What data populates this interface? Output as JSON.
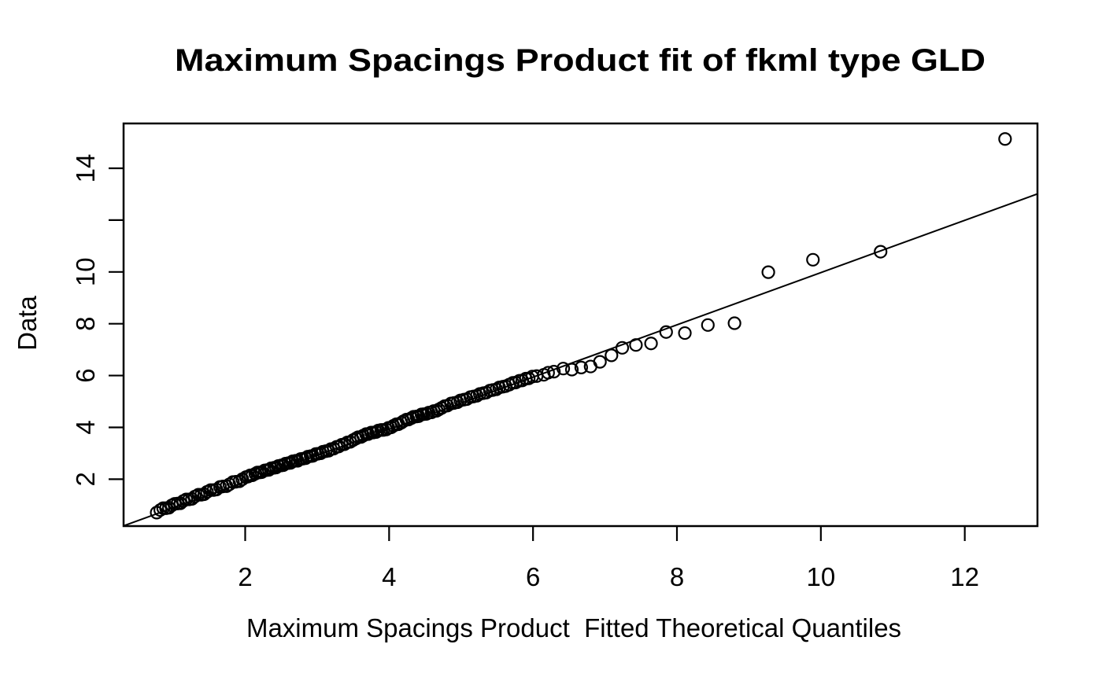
{
  "figure": {
    "background": "#ffffff",
    "foreground": "#000000"
  },
  "chart_data": {
    "type": "scatter",
    "title": "Maximum Spacings Product fit of fkml type GLD",
    "xlabel": "Maximum Spacings Product  Fitted Theoretical Quantiles",
    "ylabel": "Data",
    "xlim": [
      0.31,
      13.01
    ],
    "ylim": [
      0.19,
      15.73
    ],
    "x_ticks": [
      2,
      4,
      6,
      8,
      10,
      12
    ],
    "x_tick_labels": [
      "2",
      "4",
      "6",
      "8",
      "10",
      "12"
    ],
    "y_ticks": [
      2,
      4,
      6,
      8,
      10,
      12,
      14
    ],
    "y_tick_labels": [
      "2",
      "4",
      "6",
      "8",
      "10",
      "",
      "14"
    ],
    "grid": false,
    "legend": null,
    "marker": "open-circle",
    "marker_color": "#000000",
    "reference_line": {
      "x1": 0.31,
      "y1": 0.2,
      "x2": 13.01,
      "y2": 13.01
    },
    "points": [
      [
        0.77,
        0.71
      ],
      [
        0.82,
        0.81
      ],
      [
        0.86,
        0.88
      ],
      [
        0.9,
        0.88
      ],
      [
        0.94,
        0.9
      ],
      [
        0.98,
        0.99
      ],
      [
        1.02,
        1.05
      ],
      [
        1.06,
        1.06
      ],
      [
        1.1,
        1.07
      ],
      [
        1.14,
        1.16
      ],
      [
        1.18,
        1.22
      ],
      [
        1.22,
        1.22
      ],
      [
        1.26,
        1.24
      ],
      [
        1.3,
        1.33
      ],
      [
        1.35,
        1.4
      ],
      [
        1.39,
        1.4
      ],
      [
        1.43,
        1.42
      ],
      [
        1.47,
        1.51
      ],
      [
        1.52,
        1.58
      ],
      [
        1.56,
        1.58
      ],
      [
        1.6,
        1.6
      ],
      [
        1.65,
        1.7
      ],
      [
        1.69,
        1.72
      ],
      [
        1.74,
        1.73
      ],
      [
        1.78,
        1.8
      ],
      [
        1.83,
        1.89
      ],
      [
        1.87,
        1.9
      ],
      [
        1.92,
        1.92
      ],
      [
        1.96,
        2.0
      ],
      [
        2.01,
        2.08
      ],
      [
        2.04,
        2.1
      ],
      [
        2.07,
        2.15
      ],
      [
        2.1,
        2.15
      ],
      [
        2.14,
        2.21
      ],
      [
        2.17,
        2.26
      ],
      [
        2.2,
        2.26
      ],
      [
        2.23,
        2.27
      ],
      [
        2.27,
        2.34
      ],
      [
        2.3,
        2.35
      ],
      [
        2.33,
        2.36
      ],
      [
        2.36,
        2.42
      ],
      [
        2.4,
        2.44
      ],
      [
        2.43,
        2.45
      ],
      [
        2.46,
        2.51
      ],
      [
        2.5,
        2.53
      ],
      [
        2.53,
        2.54
      ],
      [
        2.56,
        2.6
      ],
      [
        2.6,
        2.62
      ],
      [
        2.63,
        2.63
      ],
      [
        2.66,
        2.69
      ],
      [
        2.7,
        2.71
      ],
      [
        2.73,
        2.71
      ],
      [
        2.77,
        2.78
      ],
      [
        2.8,
        2.79
      ],
      [
        2.84,
        2.81
      ],
      [
        2.87,
        2.87
      ],
      [
        2.91,
        2.89
      ],
      [
        2.94,
        2.9
      ],
      [
        2.98,
        2.97
      ],
      [
        3.01,
        2.98
      ],
      [
        3.05,
        3.0
      ],
      [
        3.08,
        3.06
      ],
      [
        3.12,
        3.08
      ],
      [
        3.16,
        3.1
      ],
      [
        3.19,
        3.16
      ],
      [
        3.23,
        3.18
      ],
      [
        3.27,
        3.25
      ],
      [
        3.3,
        3.26
      ],
      [
        3.34,
        3.33
      ],
      [
        3.38,
        3.35
      ],
      [
        3.42,
        3.42
      ],
      [
        3.46,
        3.44
      ],
      [
        3.5,
        3.51
      ],
      [
        3.54,
        3.57
      ],
      [
        3.57,
        3.62
      ],
      [
        3.61,
        3.63
      ],
      [
        3.64,
        3.68
      ],
      [
        3.68,
        3.74
      ],
      [
        3.71,
        3.74
      ],
      [
        3.75,
        3.8
      ],
      [
        3.78,
        3.8
      ],
      [
        3.82,
        3.82
      ],
      [
        3.85,
        3.88
      ],
      [
        3.89,
        3.9
      ],
      [
        3.92,
        3.9
      ],
      [
        3.96,
        3.92
      ],
      [
        3.99,
        3.98
      ],
      [
        4.03,
        4.0
      ],
      [
        4.06,
        4.06
      ],
      [
        4.1,
        4.12
      ],
      [
        4.13,
        4.12
      ],
      [
        4.17,
        4.18
      ],
      [
        4.2,
        4.24
      ],
      [
        4.24,
        4.3
      ],
      [
        4.27,
        4.3
      ],
      [
        4.31,
        4.36
      ],
      [
        4.34,
        4.41
      ],
      [
        4.38,
        4.42
      ],
      [
        4.41,
        4.43
      ],
      [
        4.45,
        4.5
      ],
      [
        4.48,
        4.51
      ],
      [
        4.52,
        4.52
      ],
      [
        4.55,
        4.57
      ],
      [
        4.59,
        4.58
      ],
      [
        4.62,
        4.63
      ],
      [
        4.66,
        4.64
      ],
      [
        4.69,
        4.69
      ],
      [
        4.73,
        4.75
      ],
      [
        4.77,
        4.82
      ],
      [
        4.81,
        4.84
      ],
      [
        4.86,
        4.92
      ],
      [
        4.9,
        4.94
      ],
      [
        4.95,
        4.97
      ],
      [
        4.99,
        5.04
      ],
      [
        5.04,
        5.07
      ],
      [
        5.08,
        5.09
      ],
      [
        5.13,
        5.17
      ],
      [
        5.17,
        5.19
      ],
      [
        5.22,
        5.22
      ],
      [
        5.26,
        5.29
      ],
      [
        5.31,
        5.32
      ],
      [
        5.35,
        5.34
      ],
      [
        5.4,
        5.42
      ],
      [
        5.44,
        5.44
      ],
      [
        5.49,
        5.47
      ],
      [
        5.53,
        5.54
      ],
      [
        5.58,
        5.57
      ],
      [
        5.62,
        5.59
      ],
      [
        5.67,
        5.65
      ],
      [
        5.72,
        5.72
      ],
      [
        5.76,
        5.73
      ],
      [
        5.81,
        5.8
      ],
      [
        5.85,
        5.81
      ],
      [
        5.9,
        5.88
      ],
      [
        5.94,
        5.89
      ],
      [
        5.99,
        5.96
      ],
      [
        6.05,
        5.98
      ],
      [
        6.15,
        6.03
      ],
      [
        6.21,
        6.11
      ],
      [
        6.29,
        6.15
      ],
      [
        6.42,
        6.27
      ],
      [
        6.54,
        6.23
      ],
      [
        6.67,
        6.31
      ],
      [
        6.8,
        6.35
      ],
      [
        6.93,
        6.53
      ],
      [
        7.09,
        6.78
      ],
      [
        7.24,
        7.07
      ],
      [
        7.43,
        7.18
      ],
      [
        7.64,
        7.24
      ],
      [
        7.85,
        7.68
      ],
      [
        8.11,
        7.64
      ],
      [
        8.43,
        7.95
      ],
      [
        8.8,
        8.02
      ],
      [
        9.27,
        9.99
      ],
      [
        9.89,
        10.47
      ],
      [
        10.83,
        10.78
      ],
      [
        12.56,
        15.13
      ]
    ]
  }
}
